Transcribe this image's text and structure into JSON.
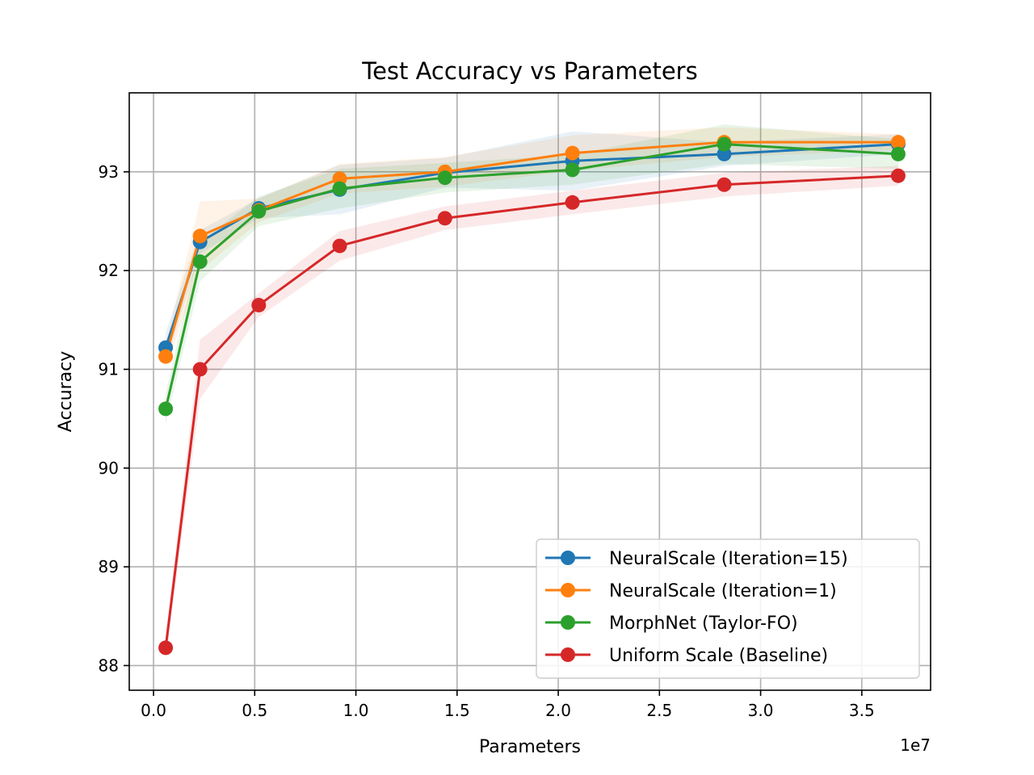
{
  "chart_data": {
    "type": "line",
    "title": "Test Accuracy vs Parameters",
    "xlabel": "Parameters",
    "ylabel": "Accuracy",
    "x_offset_label": "1e7",
    "xlim": [
      -1200000,
      38400000
    ],
    "ylim": [
      87.75,
      93.8
    ],
    "xticks": [
      0,
      5000000,
      10000000,
      15000000,
      20000000,
      25000000,
      30000000,
      35000000
    ],
    "xtick_labels": [
      "0.0",
      "0.5",
      "1.0",
      "1.5",
      "2.0",
      "2.5",
      "3.0",
      "3.5"
    ],
    "yticks": [
      88,
      89,
      90,
      91,
      92,
      93
    ],
    "ytick_labels": [
      "88",
      "89",
      "90",
      "91",
      "92",
      "93"
    ],
    "grid": true,
    "legend_position": "lower-right",
    "series": [
      {
        "name": "NeuralScale (Iteration=15)",
        "color": "#1f77b4",
        "x": [
          600000,
          2300000,
          5200000,
          9200000,
          14400000,
          20700000,
          28200000,
          36800000
        ],
        "y": [
          91.22,
          92.29,
          92.63,
          92.82,
          92.99,
          93.11,
          93.18,
          93.28
        ],
        "band": [
          0.15,
          0.12,
          0.1,
          0.25,
          0.15,
          0.3,
          0.12,
          0.1
        ]
      },
      {
        "name": "NeuralScale (Iteration=1)",
        "color": "#ff7f0e",
        "x": [
          600000,
          2300000,
          5200000,
          9200000,
          14400000,
          20700000,
          28200000,
          36800000
        ],
        "y": [
          91.13,
          92.35,
          92.61,
          92.93,
          93.0,
          93.19,
          93.3,
          93.3
        ],
        "band": [
          0.12,
          0.35,
          0.12,
          0.15,
          0.15,
          0.18,
          0.15,
          0.08
        ]
      },
      {
        "name": "MorphNet (Taylor-FO)",
        "color": "#2ca02c",
        "x": [
          600000,
          2300000,
          5200000,
          9200000,
          14400000,
          20700000,
          28200000,
          36800000
        ],
        "y": [
          90.6,
          92.09,
          92.6,
          92.83,
          92.94,
          93.02,
          93.28,
          93.18
        ],
        "band": [
          0.15,
          0.2,
          0.15,
          0.2,
          0.15,
          0.15,
          0.2,
          0.15
        ]
      },
      {
        "name": "Uniform Scale (Baseline)",
        "color": "#d62728",
        "x": [
          600000,
          2300000,
          5200000,
          9200000,
          14400000,
          20700000,
          28200000,
          36800000
        ],
        "y": [
          88.18,
          91.0,
          91.65,
          92.25,
          92.53,
          92.69,
          92.87,
          92.96
        ],
        "band": [
          0.12,
          0.3,
          0.12,
          0.15,
          0.12,
          0.12,
          0.12,
          0.1
        ]
      }
    ]
  }
}
